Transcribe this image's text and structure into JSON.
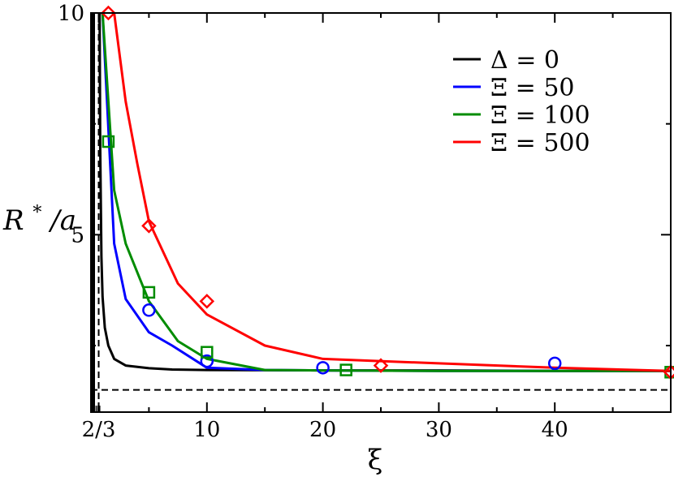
{
  "chart_data": {
    "type": "line",
    "xlabel": "ξ",
    "ylabel_main": "R",
    "ylabel_sup": "*",
    "ylabel_rest": "/a",
    "xlim": [
      0,
      50
    ],
    "ylim": [
      1,
      10
    ],
    "x_ticks": [
      {
        "value": 0.6667,
        "label": "2/3"
      },
      {
        "value": 10,
        "label": "10"
      },
      {
        "value": 20,
        "label": "20"
      },
      {
        "value": 30,
        "label": "30"
      },
      {
        "value": 40,
        "label": "40"
      }
    ],
    "y_ticks": [
      {
        "value": 5,
        "label": "5"
      },
      {
        "value": 10,
        "label": "10"
      }
    ],
    "reference_lines": {
      "vertical_x": 0.6667,
      "horizontal_y": 1.5
    },
    "legend_position": "top-right",
    "series": [
      {
        "name": "Δ = 0",
        "color": "#000000",
        "marker": "none",
        "x": [
          0.75,
          0.8,
          0.9,
          1.0,
          1.2,
          1.5,
          2,
          3,
          5,
          7,
          10,
          20,
          30,
          40,
          50
        ],
        "y": [
          10.0,
          7.0,
          4.5,
          3.6,
          2.9,
          2.5,
          2.2,
          2.05,
          1.99,
          1.96,
          1.95,
          1.94,
          1.94,
          1.93,
          1.93
        ]
      },
      {
        "name": "Ξ = 50",
        "color": "#0000ff",
        "marker": "circle",
        "x": [
          1,
          2,
          3,
          5,
          7,
          10,
          15,
          20,
          30,
          40,
          50
        ],
        "y": [
          10.0,
          4.8,
          3.55,
          2.8,
          2.5,
          2.0,
          1.95,
          1.94,
          1.93,
          1.93,
          1.93
        ],
        "marker_x": [
          5,
          10,
          20,
          40
        ],
        "marker_y": [
          3.3,
          2.15,
          2.0,
          2.1
        ]
      },
      {
        "name": "Ξ = 100",
        "color": "#008c00",
        "marker": "square",
        "x": [
          1,
          2,
          3,
          5,
          7.5,
          10,
          15,
          20,
          30,
          40,
          50
        ],
        "y": [
          10.0,
          6.0,
          4.8,
          3.5,
          2.6,
          2.2,
          1.95,
          1.94,
          1.93,
          1.93,
          1.93
        ],
        "marker_x": [
          1.5,
          5,
          10,
          22,
          50
        ],
        "marker_y": [
          7.1,
          3.7,
          2.35,
          1.95,
          1.9
        ]
      },
      {
        "name": "Ξ = 500",
        "color": "#ff0000",
        "marker": "diamond",
        "x": [
          2,
          3,
          4,
          5,
          7.5,
          10,
          15,
          20,
          30,
          40,
          50
        ],
        "y": [
          10.0,
          8.0,
          6.6,
          5.3,
          3.9,
          3.2,
          2.5,
          2.2,
          2.1,
          2.0,
          1.93
        ],
        "marker_x": [
          1.5,
          5,
          10,
          25,
          50
        ],
        "marker_y": [
          10.0,
          5.2,
          3.5,
          2.05,
          1.9
        ]
      }
    ]
  }
}
